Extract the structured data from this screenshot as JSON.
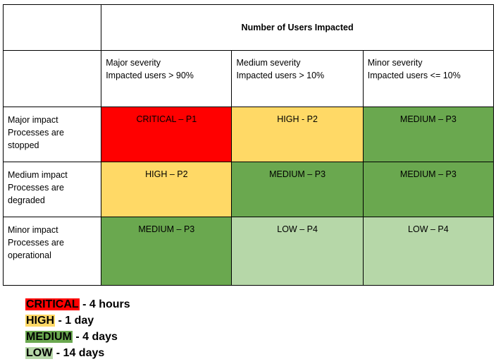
{
  "header": {
    "title": "Number of Users Impacted"
  },
  "severity_columns": [
    {
      "line1": "Major severity",
      "line2": "Impacted users > 90%"
    },
    {
      "line1": "Medium severity",
      "line2": "Impacted users > 10%"
    },
    {
      "line1": "Minor severity",
      "line2": "Impacted users <= 10%"
    }
  ],
  "rows": [
    {
      "impact": {
        "line1": "Major impact",
        "line2": "Processes are",
        "line3": "stopped"
      },
      "cells": [
        {
          "text": "CRITICAL – P1",
          "color": "#ff0000"
        },
        {
          "text": "HIGH - P2",
          "color": "#ffd966"
        },
        {
          "text": "MEDIUM – P3",
          "color": "#6aa84f"
        }
      ]
    },
    {
      "impact": {
        "line1": "Medium impact",
        "line2": "Processes are",
        "line3": "degraded"
      },
      "cells": [
        {
          "text": "HIGH – P2",
          "color": "#ffd966"
        },
        {
          "text": "MEDIUM – P3",
          "color": "#6aa84f"
        },
        {
          "text": "MEDIUM – P3",
          "color": "#6aa84f"
        }
      ]
    },
    {
      "impact": {
        "line1": "Minor impact",
        "line2": "Processes are",
        "line3": "operational"
      },
      "cells": [
        {
          "text": "MEDIUM – P3",
          "color": "#6aa84f"
        },
        {
          "text": "LOW – P4",
          "color": "#b6d7a8"
        },
        {
          "text": "LOW – P4",
          "color": "#b6d7a8"
        }
      ]
    }
  ],
  "legend": [
    {
      "label": "CRITICAL",
      "detail": " - 4 hours",
      "color": "#ff0000"
    },
    {
      "label": "HIGH",
      "detail": " - 1 day",
      "color": "#ffd966"
    },
    {
      "label": "MEDIUM",
      "detail": " - 4 days",
      "color": "#6aa84f"
    },
    {
      "label": "LOW",
      "detail": " - 14 days",
      "color": "#b6d7a8"
    }
  ]
}
